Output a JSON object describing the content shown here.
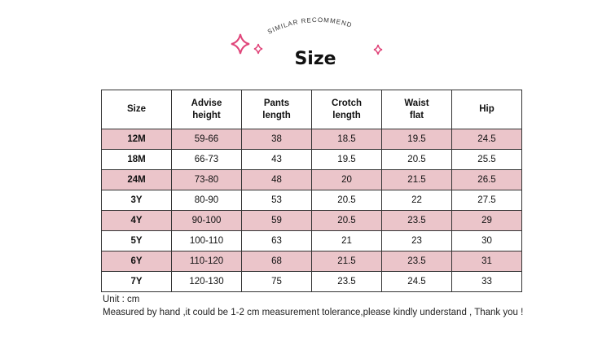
{
  "banner": {
    "subtitle": "SIMILAR RECOMMEND",
    "title": "Size"
  },
  "table": {
    "header": [
      "Size",
      "Advise\nheight",
      "Pants\nlength",
      "Crotch\nlength",
      "Waist\nflat",
      "Hip"
    ],
    "rows": [
      [
        "12M",
        "59-66",
        38,
        18.5,
        19.5,
        24.5
      ],
      [
        "18M",
        "66-73",
        43,
        19.5,
        20.5,
        25.5
      ],
      [
        "24M",
        "73-80",
        48,
        20,
        21.5,
        26.5
      ],
      [
        "3Y",
        "80-90",
        53,
        20.5,
        22,
        27.5
      ],
      [
        "4Y",
        "90-100",
        59,
        20.5,
        23.5,
        29
      ],
      [
        "5Y",
        "100-110",
        63,
        21,
        23,
        30
      ],
      [
        "6Y",
        "110-120",
        68,
        21.5,
        23.5,
        31
      ],
      [
        "7Y",
        "120-130",
        75,
        23.5,
        24.5,
        33
      ]
    ]
  },
  "notes": [
    "Unit : cm",
    "Measured by hand ,it could be 1-2 cm measurement tolerance,please kindly understand , Thank you !"
  ]
}
